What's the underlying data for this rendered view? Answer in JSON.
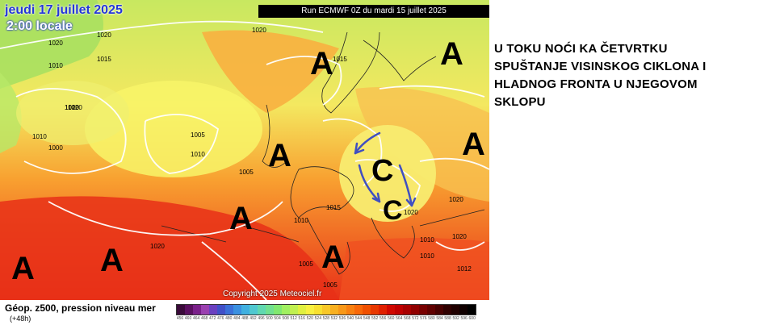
{
  "map": {
    "date": "jeudi 17 juillet 2025",
    "time": "2:00 locale",
    "run": "Run ECMWF 0Z du mardi 15 juillet 2025",
    "copyright": "Copyright 2025 Meteociel.fr",
    "isobar_labels": [
      "1020",
      "1020",
      "1015",
      "1020",
      "1010",
      "1015",
      "1020",
      "1010",
      "1000",
      "1005",
      "1010",
      "1005",
      "1015",
      "1010",
      "1020",
      "1020",
      "1020",
      "1010",
      "1020",
      "1010",
      "1012",
      "1005",
      "1005",
      "1010",
      "1020"
    ],
    "pressure_markers": [
      "A",
      "A",
      "A",
      "A",
      "C",
      "C",
      "A",
      "A",
      "A",
      "A"
    ]
  },
  "annotation": {
    "lines": [
      "U TOKU NOĆI KA ČETVRTKU",
      "SPUŠTANJE VISINSKOG CIKLONA I",
      "HLADNOG FRONTA U NJEGOVOM",
      "SKLOPU"
    ]
  },
  "legend": {
    "title": "Géop. z500, pression niveau mer",
    "subtitle": "(+48h)",
    "ticks": [
      "456",
      "460",
      "464",
      "468",
      "472",
      "476",
      "480",
      "484",
      "488",
      "492",
      "496",
      "500",
      "504",
      "508",
      "512",
      "516",
      "520",
      "524",
      "528",
      "532",
      "536",
      "540",
      "544",
      "548",
      "552",
      "556",
      "560",
      "564",
      "568",
      "572",
      "576",
      "580",
      "584",
      "588",
      "592",
      "596",
      "600"
    ],
    "colors": [
      "#3a0a3a",
      "#5a1060",
      "#7a208a",
      "#9a40b0",
      "#6a40c0",
      "#4050c8",
      "#3a70d8",
      "#3a90e0",
      "#40b0e0",
      "#50c8d0",
      "#60d8b0",
      "#70e090",
      "#80e870",
      "#a0f060",
      "#c0f050",
      "#e0f040",
      "#f8f040",
      "#f8e030",
      "#f8c828",
      "#f8b020",
      "#f89818",
      "#f88010",
      "#f86808",
      "#f05000",
      "#e83800",
      "#e02000",
      "#d00800",
      "#c00000",
      "#a80000",
      "#900000",
      "#780000",
      "#600000",
      "#480000",
      "#300000",
      "#200000",
      "#100000",
      "#000000"
    ]
  }
}
